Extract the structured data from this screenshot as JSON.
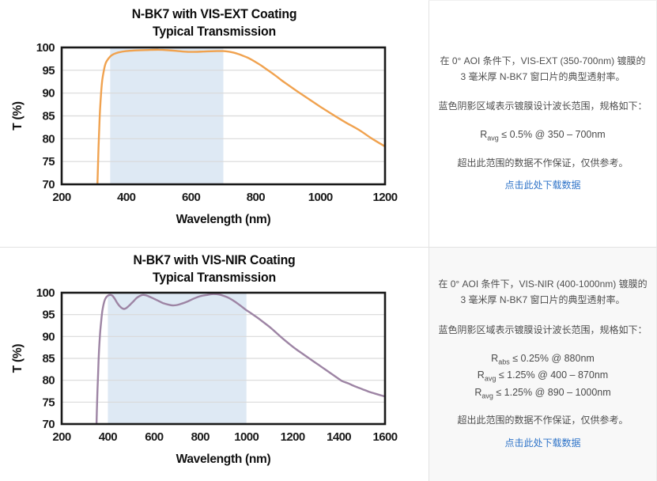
{
  "chart_data": [
    {
      "type": "line",
      "title_line1": "N-BK7 with VIS-EXT Coating",
      "title_line2": "Typical Transmission",
      "xlabel": "Wavelength (nm)",
      "ylabel": "T (%)",
      "xmin": 200,
      "xmax": 1200,
      "ymin": 70,
      "ymax": 100,
      "xticks": [
        200,
        400,
        600,
        800,
        1000,
        1200
      ],
      "yticks": [
        70,
        75,
        80,
        85,
        90,
        95,
        100
      ],
      "band": [
        350,
        700
      ],
      "band_color": "#dee9f4",
      "line_color": "#f0a24f",
      "clip": "clip-ext",
      "series_name": "VIS-EXT coated N-BK7 transmission",
      "points": [
        [
          305,
          58
        ],
        [
          308,
          64
        ],
        [
          311,
          71
        ],
        [
          314,
          78
        ],
        [
          317,
          84
        ],
        [
          321,
          89
        ],
        [
          325,
          92.5
        ],
        [
          330,
          94.8
        ],
        [
          335,
          96.3
        ],
        [
          340,
          97.1
        ],
        [
          350,
          98.0
        ],
        [
          360,
          98.5
        ],
        [
          375,
          98.9
        ],
        [
          400,
          99.2
        ],
        [
          430,
          99.35
        ],
        [
          470,
          99.45
        ],
        [
          500,
          99.5
        ],
        [
          530,
          99.4
        ],
        [
          560,
          99.2
        ],
        [
          590,
          99.05
        ],
        [
          620,
          99.05
        ],
        [
          650,
          99.15
        ],
        [
          680,
          99.2
        ],
        [
          700,
          99.2
        ],
        [
          715,
          99.1
        ],
        [
          730,
          98.9
        ],
        [
          745,
          98.6
        ],
        [
          760,
          98.2
        ],
        [
          780,
          97.6
        ],
        [
          800,
          96.8
        ],
        [
          820,
          95.9
        ],
        [
          840,
          94.9
        ],
        [
          860,
          93.9
        ],
        [
          880,
          92.8
        ],
        [
          900,
          91.8
        ],
        [
          930,
          90.3
        ],
        [
          960,
          88.9
        ],
        [
          1000,
          87.0
        ],
        [
          1040,
          85.2
        ],
        [
          1080,
          83.5
        ],
        [
          1120,
          81.9
        ],
        [
          1160,
          80.0
        ],
        [
          1200,
          78.3
        ]
      ]
    },
    {
      "type": "line",
      "title_line1": "N-BK7 with VIS-NIR Coating",
      "title_line2": "Typical Transmission",
      "xlabel": "Wavelength (nm)",
      "ylabel": "T (%)",
      "xmin": 200,
      "xmax": 1600,
      "ymin": 70,
      "ymax": 100,
      "xticks": [
        200,
        400,
        600,
        800,
        1000,
        1200,
        1400,
        1600
      ],
      "yticks": [
        70,
        75,
        80,
        85,
        90,
        95,
        100
      ],
      "band": [
        400,
        1000
      ],
      "band_color": "#dee9f4",
      "line_color": "#9d84a4",
      "clip": "clip-nir",
      "series_name": "VIS-NIR coated N-BK7 transmission",
      "points": [
        [
          345,
          58
        ],
        [
          348,
          64
        ],
        [
          351,
          70
        ],
        [
          354,
          76
        ],
        [
          358,
          82
        ],
        [
          362,
          87
        ],
        [
          366,
          90.5
        ],
        [
          371,
          93.5
        ],
        [
          376,
          95.8
        ],
        [
          382,
          97.5
        ],
        [
          388,
          98.5
        ],
        [
          395,
          99.1
        ],
        [
          403,
          99.4
        ],
        [
          412,
          99.5
        ],
        [
          420,
          99.3
        ],
        [
          430,
          98.6
        ],
        [
          440,
          97.7
        ],
        [
          450,
          97.0
        ],
        [
          460,
          96.5
        ],
        [
          470,
          96.3
        ],
        [
          480,
          96.5
        ],
        [
          495,
          97.2
        ],
        [
          510,
          98.0
        ],
        [
          525,
          98.8
        ],
        [
          540,
          99.3
        ],
        [
          552,
          99.5
        ],
        [
          565,
          99.4
        ],
        [
          580,
          99.1
        ],
        [
          600,
          98.6
        ],
        [
          620,
          98.1
        ],
        [
          640,
          97.6
        ],
        [
          660,
          97.3
        ],
        [
          680,
          97.1
        ],
        [
          700,
          97.2
        ],
        [
          720,
          97.5
        ],
        [
          745,
          98.0
        ],
        [
          770,
          98.6
        ],
        [
          800,
          99.2
        ],
        [
          830,
          99.5
        ],
        [
          855,
          99.7
        ],
        [
          880,
          99.6
        ],
        [
          900,
          99.3
        ],
        [
          920,
          98.9
        ],
        [
          940,
          98.3
        ],
        [
          960,
          97.6
        ],
        [
          980,
          96.8
        ],
        [
          1000,
          96.0
        ],
        [
          1020,
          95.3
        ],
        [
          1045,
          94.4
        ],
        [
          1070,
          93.4
        ],
        [
          1100,
          92.2
        ],
        [
          1130,
          90.8
        ],
        [
          1160,
          89.4
        ],
        [
          1190,
          88.1
        ],
        [
          1220,
          86.9
        ],
        [
          1250,
          85.8
        ],
        [
          1280,
          84.7
        ],
        [
          1310,
          83.6
        ],
        [
          1340,
          82.5
        ],
        [
          1370,
          81.4
        ],
        [
          1400,
          80.3
        ],
        [
          1415,
          79.8
        ],
        [
          1440,
          79.3
        ],
        [
          1470,
          78.6
        ],
        [
          1500,
          78.0
        ],
        [
          1530,
          77.4
        ],
        [
          1560,
          76.9
        ],
        [
          1600,
          76.3
        ]
      ]
    }
  ],
  "panels": [
    {
      "intro": "在 0° AOI 条件下，VIS-EXT (350-700nm) 镀膜的 3 毫米厚 N-BK7 窗口片的典型透射率。",
      "note": "蓝色阴影区域表示镀膜设计波长范围，规格如下：",
      "specs": [
        {
          "base": "R",
          "sub": "avg",
          "rest": " ≤ 0.5% @ 350 – 700nm"
        }
      ],
      "disclaimer": "超出此范围的数据不作保证，仅供参考。",
      "link": "点击此处下载数据"
    },
    {
      "intro": "在 0° AOI 条件下，VIS-NIR (400-1000nm) 镀膜的 3 毫米厚 N-BK7 窗口片的典型透射率。",
      "note": "蓝色阴影区域表示镀膜设计波长范围，规格如下：",
      "specs": [
        {
          "base": "R",
          "sub": "abs",
          "rest": " ≤ 0.25% @ 880nm"
        },
        {
          "base": "R",
          "sub": "avg",
          "rest": " ≤ 1.25% @ 400 – 870nm"
        },
        {
          "base": "R",
          "sub": "avg",
          "rest": " ≤ 1.25% @ 890 – 1000nm"
        }
      ],
      "disclaimer": "超出此范围的数据不作保证，仅供参考。",
      "link": "点击此处下载数据"
    }
  ],
  "colors": {
    "vis_ext_curve": "#f0a24f",
    "vis_nir_curve": "#9d84a4",
    "design_band": "#dee9f4",
    "gridline": "#d9d9d9",
    "frame": "#191919",
    "link": "#2e73c8",
    "divider": "#e3e3e3"
  }
}
